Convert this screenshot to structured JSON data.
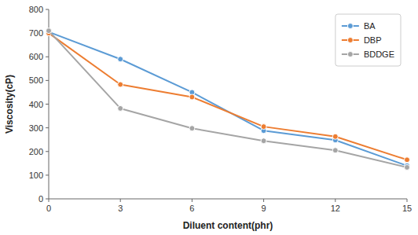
{
  "chart_data": {
    "type": "line",
    "x": [
      0,
      3,
      6,
      9,
      12,
      15
    ],
    "series": [
      {
        "name": "BA",
        "color": "#5B9BD5",
        "values": [
          705,
          590,
          450,
          288,
          248,
          140
        ]
      },
      {
        "name": "DBP",
        "color": "#ED7D31",
        "values": [
          700,
          483,
          430,
          305,
          263,
          165
        ]
      },
      {
        "name": "BDDGE",
        "color": "#A5A5A5",
        "values": [
          710,
          382,
          298,
          245,
          205,
          133
        ]
      }
    ],
    "x_label": "Diluent content(phr)",
    "y_label": "Viscosity(cP)",
    "xlim": [
      0,
      15
    ],
    "ylim": [
      0,
      800
    ],
    "xticks": [
      0,
      3,
      6,
      9,
      12,
      15
    ],
    "yticks": [
      0,
      100,
      200,
      300,
      400,
      500,
      600,
      700,
      800
    ],
    "marker": "circle",
    "grid": false,
    "legend": "upper right"
  }
}
